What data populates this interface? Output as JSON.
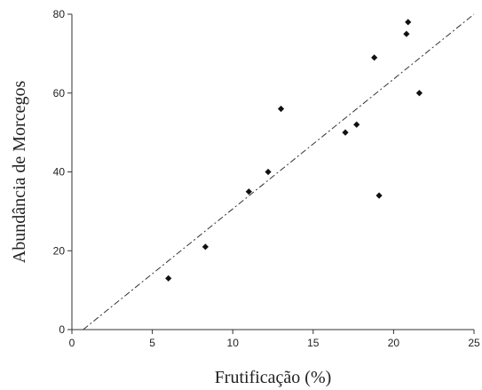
{
  "chart_data": {
    "type": "scatter",
    "xlabel": "Frutificação (%)",
    "ylabel": "Abundância de Morcegos",
    "xlim": [
      0,
      25
    ],
    "ylim": [
      0,
      80
    ],
    "x_ticks": [
      0,
      5,
      10,
      15,
      20,
      25
    ],
    "y_ticks": [
      0,
      20,
      40,
      60,
      80
    ],
    "x_tick_labels": [
      "0",
      "5",
      "10",
      "15",
      "20",
      "25"
    ],
    "y_tick_labels": [
      "0",
      "20",
      "40",
      "60",
      "80"
    ],
    "grid": false,
    "marker": "diamond",
    "marker_color": "#111111",
    "series": [
      {
        "points": [
          {
            "x": 6.0,
            "y": 13
          },
          {
            "x": 8.3,
            "y": 21
          },
          {
            "x": 11.0,
            "y": 35
          },
          {
            "x": 12.2,
            "y": 40
          },
          {
            "x": 13.0,
            "y": 56
          },
          {
            "x": 17.0,
            "y": 50
          },
          {
            "x": 17.7,
            "y": 52
          },
          {
            "x": 18.8,
            "y": 69
          },
          {
            "x": 19.1,
            "y": 34
          },
          {
            "x": 20.8,
            "y": 75
          },
          {
            "x": 20.9,
            "y": 78
          },
          {
            "x": 21.6,
            "y": 60
          }
        ]
      }
    ],
    "trend_line": {
      "style": "dash-dot",
      "color": "#333333",
      "from": {
        "x": 0.7,
        "y": 0
      },
      "to": {
        "x": 25,
        "y": 80
      }
    }
  }
}
